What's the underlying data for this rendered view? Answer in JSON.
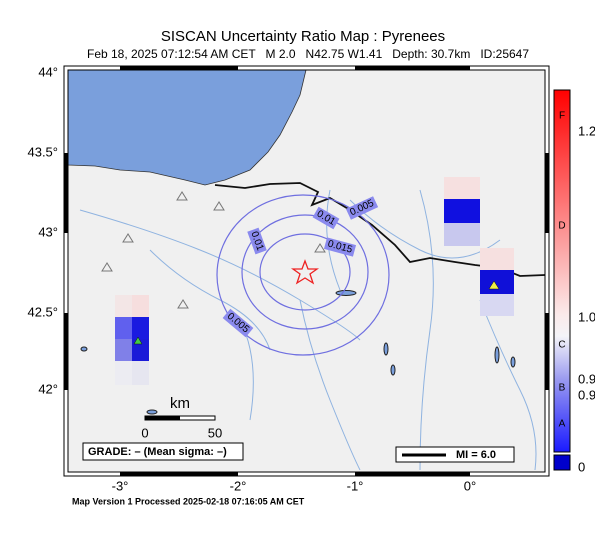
{
  "title": "SISCAN Uncertainty Ratio Map : Pyrenees",
  "subtitle": "Feb 18, 2025 07:12:54 AM CET   M 2.0   N42.75 W1.41   Depth: 30.7km   ID:25647",
  "map": {
    "lat_labels": [
      "44°",
      "43.5°",
      "43°",
      "42.5°",
      "42°"
    ],
    "lon_labels": [
      "-3°",
      "-2°",
      "-1°",
      "0°"
    ],
    "contour_labels": [
      "0.005",
      "0.01",
      "0.015",
      "0.01",
      "0.005"
    ],
    "scale": {
      "unit": "km",
      "ticks": [
        "0",
        "50"
      ]
    },
    "grade": "GRADE: – (Mean sigma: –)",
    "mi": "MI = 6.0",
    "colorbar": {
      "letters": [
        "F",
        "D",
        "C",
        "B",
        "A"
      ],
      "values": [
        "1.2",
        "1.0",
        "0.9",
        "0.9",
        "0"
      ]
    }
  },
  "footer": "Map Version 1 Processed 2025-02-18 07:16:05 AM CET"
}
